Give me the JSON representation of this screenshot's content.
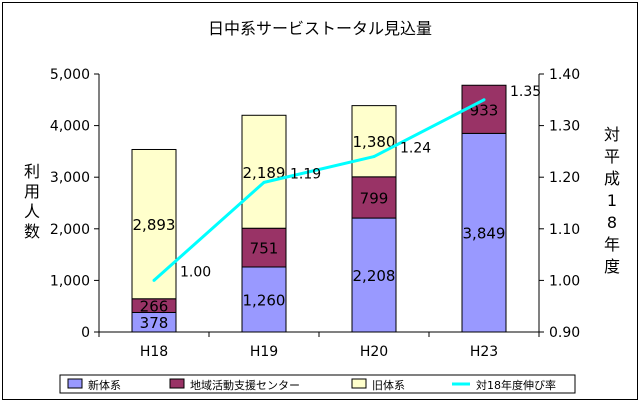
{
  "chart_data": {
    "type": "bar",
    "stacked": true,
    "title": "日中系サービストータル見込量",
    "categories": [
      "H18",
      "H19",
      "H20",
      "H23"
    ],
    "series": [
      {
        "name": "新体系",
        "color": "#9999ff",
        "values": [
          378,
          1260,
          2208,
          3849
        ]
      },
      {
        "name": "地域活動支援センター",
        "color": "#993366",
        "values": [
          266,
          751,
          799,
          933
        ]
      },
      {
        "name": "旧体系",
        "color": "#ffffcc",
        "values": [
          2893,
          2189,
          1380,
          0
        ]
      }
    ],
    "stack_labels": [
      [
        "378",
        "1,260",
        "2,208",
        "3,849"
      ],
      [
        "266",
        "751",
        "799",
        "933"
      ],
      [
        "2,893",
        "2,189",
        "1,380",
        ""
      ]
    ],
    "line_series": {
      "name": "対18年度伸び率",
      "color": "#00ffff",
      "values": [
        1.0,
        1.19,
        1.24,
        1.35
      ],
      "labels": [
        "1.00",
        "1.19",
        "1.24",
        "1.35"
      ]
    },
    "ylabel": "利用人数",
    "y2label": "対平成18年度",
    "ylim": [
      0,
      5000
    ],
    "yticks": [
      "0",
      "1,000",
      "2,000",
      "3,000",
      "4,000",
      "5,000"
    ],
    "y2lim": [
      0.9,
      1.4
    ],
    "y2ticks": [
      "0.90",
      "1.00",
      "1.10",
      "1.20",
      "1.30",
      "1.40"
    ],
    "legend_position": "bottom",
    "grid": false
  }
}
